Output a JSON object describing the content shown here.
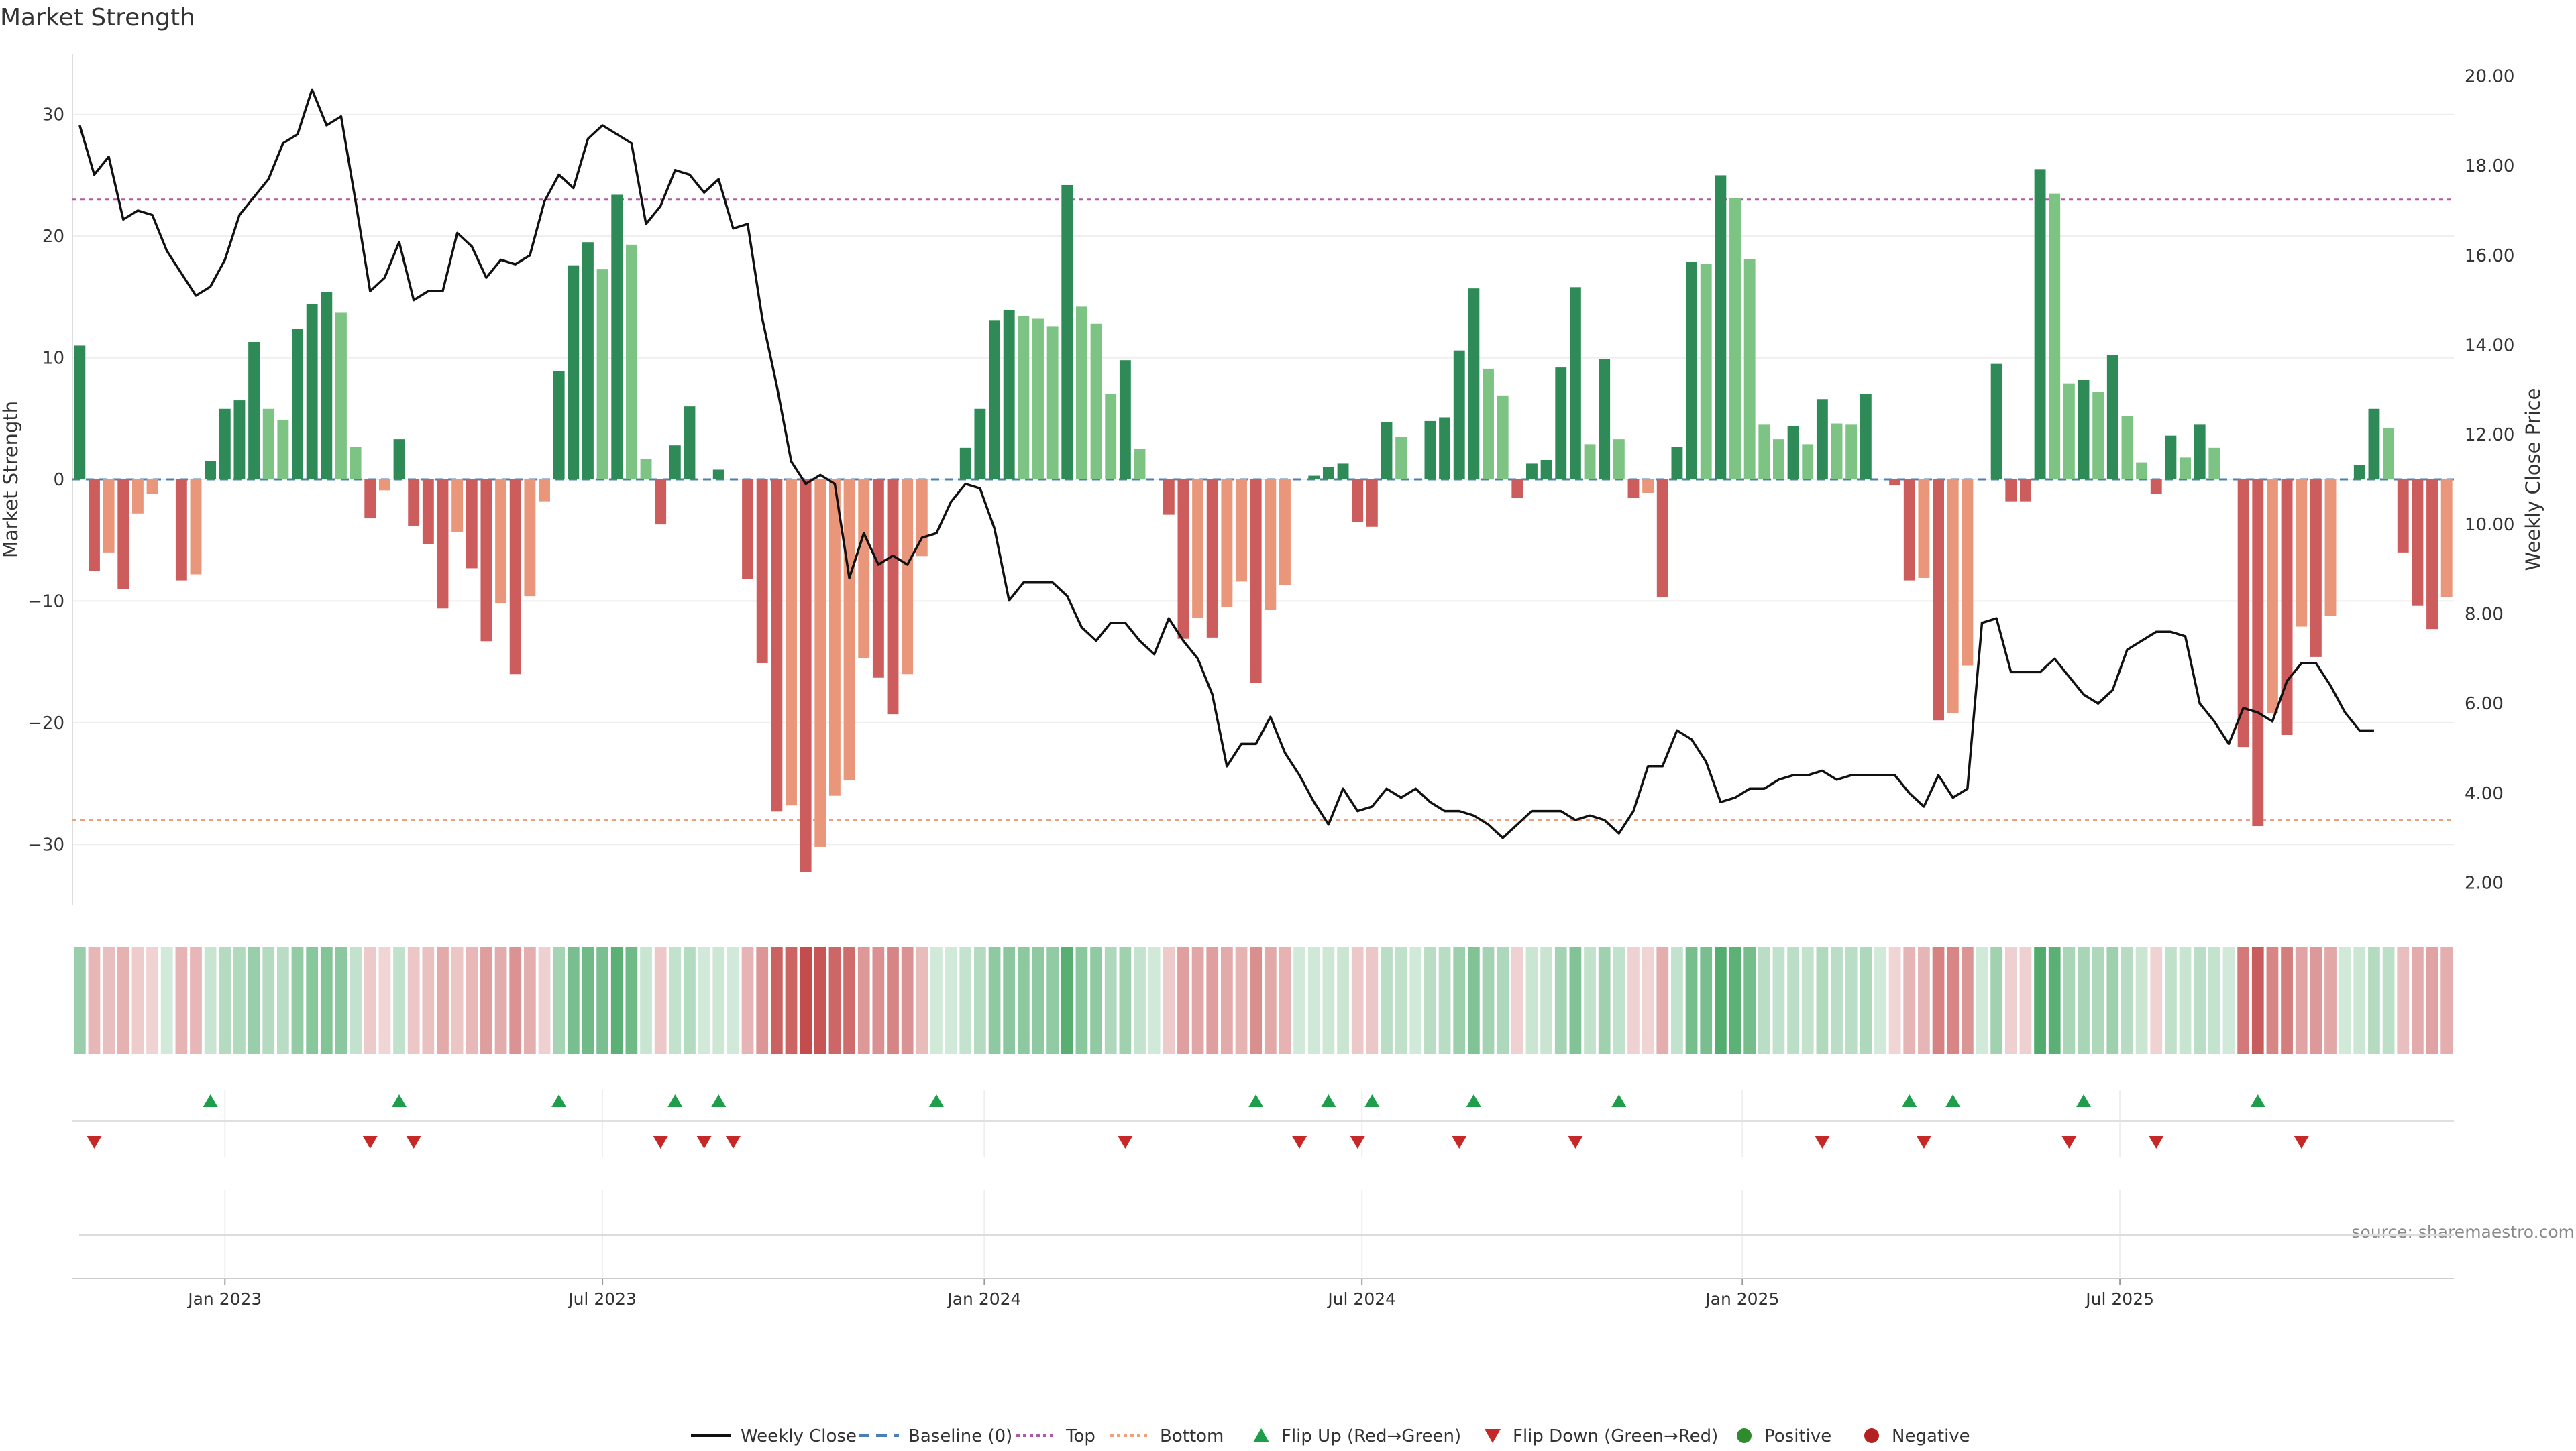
{
  "title": "Market Strength",
  "source_note": "source: sharemaestro.com",
  "colors": {
    "pos_strong": "#2e8b57",
    "pos_light": "#7dc383",
    "neg_strong": "#cd5c5c",
    "neg_light": "#e9967a",
    "line": "#111111",
    "top": "#b05aa6",
    "bottom": "#f0a07a",
    "baseline": "#4a7fb5",
    "flip_up": "#1e9e4a",
    "flip_down": "#c62828",
    "positive": "#2e8b2e",
    "negative": "#b22222"
  },
  "chart_data": {
    "type": "bar",
    "ylabel": "Market Strength",
    "y2label": "Weekly Close Price",
    "ylim": [
      -35,
      35
    ],
    "y2lim": [
      1.5,
      20.5
    ],
    "y_ticks": [
      30,
      20,
      10,
      0,
      -10,
      -20,
      -30
    ],
    "y_tick_labels": [
      "30",
      "20",
      "10",
      "0",
      "−10",
      "−20",
      "−30"
    ],
    "y2_ticks": [
      20,
      18,
      16,
      14,
      12,
      10,
      8,
      6,
      4,
      2
    ],
    "y2_tick_labels": [
      "20.00",
      "18.00",
      "16.00",
      "14.00",
      "12.00",
      "10.00",
      "8.00",
      "6.00",
      "4.00",
      "2.00"
    ],
    "x_ticks": [
      {
        "label": "Jan 2023",
        "week": 10
      },
      {
        "label": "Jul 2023",
        "week": 36
      },
      {
        "label": "Jan 2024",
        "week": 62.3
      },
      {
        "label": "Jul 2024",
        "week": 88.3
      },
      {
        "label": "Jan 2025",
        "week": 114.5
      },
      {
        "label": "Jul 2025",
        "week": 140.5
      }
    ],
    "top_level": 23,
    "bottom_level": -28,
    "strength": [
      11,
      -7.5,
      -6,
      -9,
      -2.8,
      -1.2,
      0,
      -8.3,
      -7.8,
      1.5,
      5.8,
      6.5,
      11.3,
      5.8,
      4.9,
      12.4,
      14.4,
      15.4,
      13.7,
      2.7,
      -3.2,
      -0.9,
      3.3,
      -3.8,
      -5.3,
      -10.6,
      -4.3,
      -7.3,
      -13.3,
      -10.2,
      -16,
      -9.6,
      -1.8,
      8.9,
      17.6,
      19.5,
      17.3,
      23.4,
      19.3,
      1.7,
      -3.7,
      2.8,
      6,
      0,
      0.8,
      0,
      -8.2,
      -15.1,
      -27.3,
      -26.8,
      -32.3,
      -30.2,
      -26,
      -24.7,
      -14.7,
      -16.3,
      -19.3,
      -16,
      -6.3,
      0,
      0,
      2.6,
      5.8,
      13.1,
      13.9,
      13.4,
      13.2,
      12.6,
      24.2,
      14.2,
      12.8,
      7,
      9.8,
      2.5,
      0,
      -2.9,
      -13.1,
      -11.4,
      -13,
      -10.5,
      -8.4,
      -16.7,
      -10.7,
      -8.7,
      0,
      0.3,
      1,
      1.3,
      -3.5,
      -3.9,
      4.7,
      3.5,
      0,
      4.8,
      5.1,
      10.6,
      15.7,
      9.1,
      6.9,
      -1.5,
      1.3,
      1.6,
      9.2,
      15.8,
      2.9,
      9.9,
      3.3,
      -1.5,
      -1.1,
      -9.7,
      2.7,
      17.9,
      17.7,
      25,
      23.1,
      18.1,
      4.5,
      3.3,
      4.4,
      2.9,
      6.6,
      4.6,
      4.5,
      7,
      0,
      -0.5,
      -8.3,
      -8.1,
      -19.8,
      -19.2,
      -15.3,
      0,
      9.5,
      -1.8,
      -1.8,
      25.5,
      23.5,
      7.9,
      8.2,
      7.2,
      10.2,
      5.2,
      1.4,
      -1.2,
      3.6,
      1.8,
      4.5,
      2.6,
      0,
      -22,
      -28.5,
      -19.2,
      -21,
      -12.1,
      -14.6,
      -11.2,
      0,
      1.2,
      5.8,
      4.2,
      -6,
      -10.4,
      -12.3,
      -9.7
    ],
    "weekly_close": [
      18.9,
      17.8,
      18.2,
      16.8,
      17,
      16.9,
      16.1,
      15.6,
      15.1,
      15.3,
      15.9,
      16.9,
      17.3,
      17.7,
      18.5,
      18.7,
      19.7,
      18.9,
      19.1,
      17.2,
      15.2,
      15.5,
      16.3,
      15,
      15.2,
      15.2,
      16.5,
      16.2,
      15.5,
      15.9,
      15.8,
      16,
      17.2,
      17.8,
      17.5,
      18.6,
      18.9,
      18.7,
      18.5,
      16.7,
      17.1,
      17.9,
      17.8,
      17.4,
      17.7,
      16.6,
      16.7,
      14.6,
      13.1,
      11.4,
      10.9,
      11.1,
      10.9,
      8.8,
      9.8,
      9.1,
      9.3,
      9.1,
      9.7,
      9.8,
      10.5,
      10.9,
      10.8,
      9.9,
      8.3,
      8.7,
      8.7,
      8.7,
      8.4,
      7.7,
      7.4,
      7.8,
      7.8,
      7.4,
      7.1,
      7.9,
      7.4,
      7,
      6.2,
      4.6,
      5.1,
      5.1,
      5.7,
      4.9,
      4.4,
      3.8,
      3.3,
      4.1,
      3.6,
      3.7,
      4.1,
      3.9,
      4.1,
      3.8,
      3.6,
      3.6,
      3.5,
      3.3,
      3,
      3.3,
      3.6,
      3.6,
      3.6,
      3.4,
      3.5,
      3.4,
      3.1,
      3.6,
      4.6,
      4.6,
      5.4,
      5.2,
      4.7,
      3.8,
      3.9,
      4.1,
      4.1,
      4.3,
      4.4,
      4.4,
      4.5,
      4.3,
      4.4,
      4.4,
      4.4,
      4.4,
      4.0,
      3.7,
      4.4,
      3.9,
      4.1,
      7.8,
      7.9,
      6.7,
      6.7,
      6.7,
      7,
      6.6,
      6.2,
      6,
      6.3,
      7.2,
      7.4,
      7.6,
      7.6,
      7.5,
      6.0,
      5.6,
      5.1,
      5.9,
      5.8,
      5.6,
      6.5,
      6.9,
      6.9,
      6.4,
      5.8,
      5.4,
      5.4
    ],
    "flip_up_weeks": [
      9,
      22,
      33,
      41,
      44,
      59,
      81,
      86,
      89,
      96,
      106,
      126,
      129,
      138,
      150
    ],
    "flip_down_weeks": [
      1,
      20,
      23,
      40,
      43,
      45,
      72,
      84,
      88,
      95,
      103,
      120,
      127,
      137,
      143,
      153
    ],
    "legend": [
      "Weekly Close",
      "Baseline (0)",
      "Top",
      "Bottom",
      "Flip Up (Red→Green)",
      "Flip Down (Green→Red)",
      "Positive",
      "Negative"
    ],
    "grid": true,
    "legend_position": "bottom-center"
  }
}
